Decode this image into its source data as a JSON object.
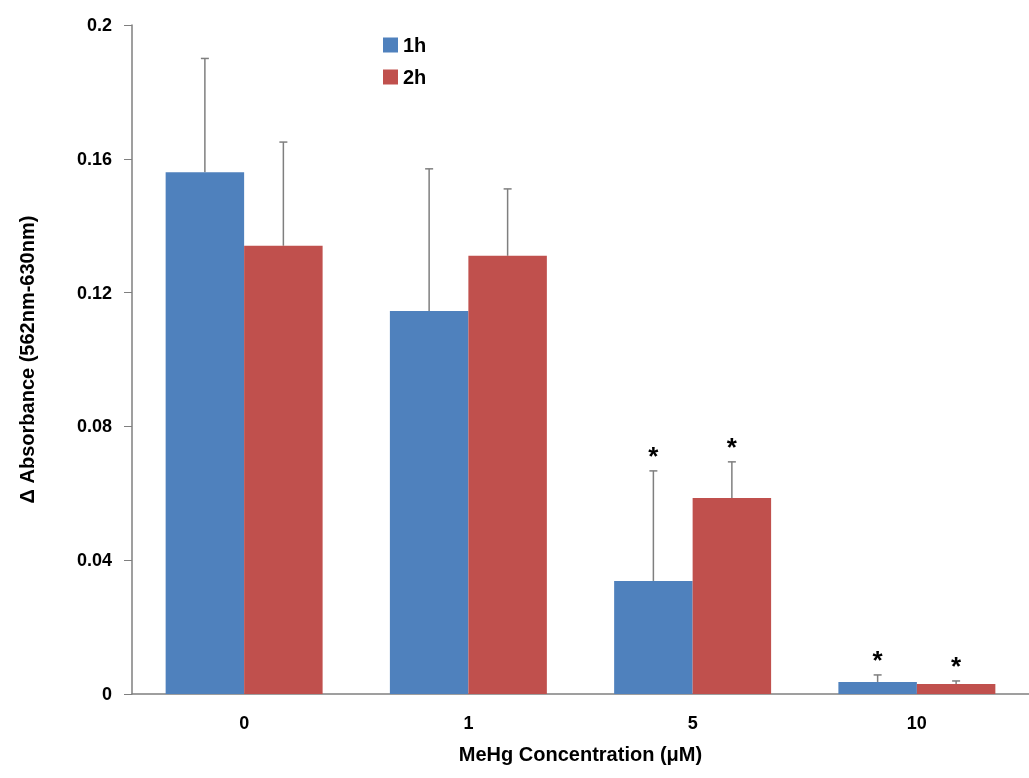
{
  "chart_data": {
    "type": "bar",
    "xlabel": "MeHg Concentration (μM)",
    "ylabel": "Δ Absorbance (562nm-630nm)",
    "categories": [
      "0",
      "1",
      "5",
      "10"
    ],
    "series": [
      {
        "name": "1h",
        "color": "#4f81bd",
        "values": [
          0.156,
          0.1145,
          0.0338,
          0.0036
        ],
        "errors": [
          [
            0.156,
            0.19
          ],
          [
            0.1145,
            0.157
          ],
          [
            0.0338,
            0.0667
          ],
          [
            0.0036,
            0.0057
          ]
        ]
      },
      {
        "name": "2h",
        "color": "#c0504d",
        "values": [
          0.134,
          0.131,
          0.0586,
          0.003
        ],
        "errors": [
          [
            0.134,
            0.165
          ],
          [
            0.131,
            0.151
          ],
          [
            0.0586,
            0.0694
          ],
          [
            0.003,
            0.0039
          ]
        ]
      }
    ],
    "ylim": [
      0,
      0.2
    ],
    "yticks": [
      0,
      0.04,
      0.08,
      0.12,
      0.16,
      0.2
    ],
    "annotations": [
      "*",
      "*",
      "*",
      "*"
    ],
    "grid": false,
    "legend": "top"
  }
}
